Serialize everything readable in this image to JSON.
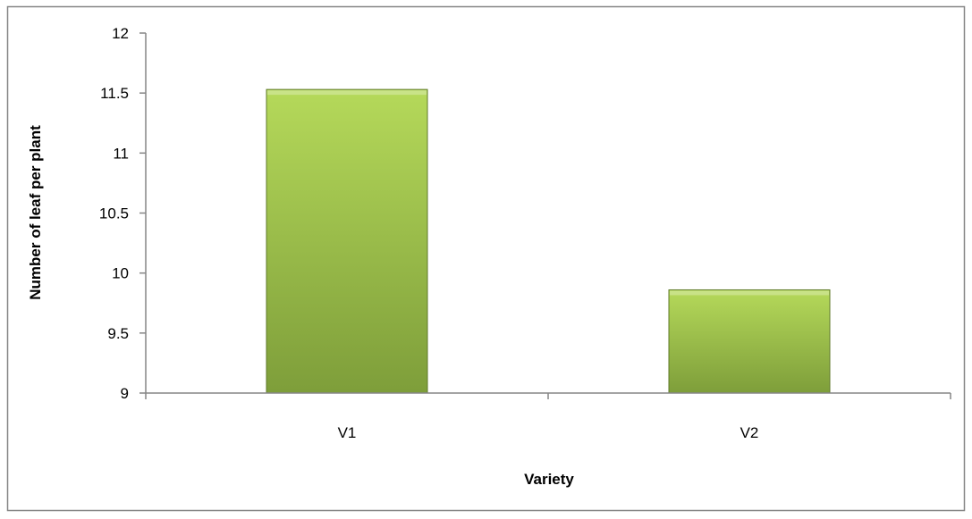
{
  "chart_data": {
    "type": "bar",
    "title": "",
    "xlabel": "Variety",
    "ylabel": "Number of leaf per plant",
    "categories": [
      "V1",
      "V2"
    ],
    "series": [
      {
        "values": [
          11.53,
          9.86
        ]
      }
    ],
    "ylim": [
      9,
      12
    ],
    "yticks": [
      "9",
      "9.5",
      "10",
      "10.5",
      "11",
      "11.5",
      "12"
    ],
    "grid": false,
    "legend": "none",
    "colors": {
      "bar_light": "#b5d95a",
      "bar_dark": "#7e9e3a",
      "bar_edge": "#5f7a2a",
      "axis": "#868686",
      "frame": "#868686"
    }
  }
}
